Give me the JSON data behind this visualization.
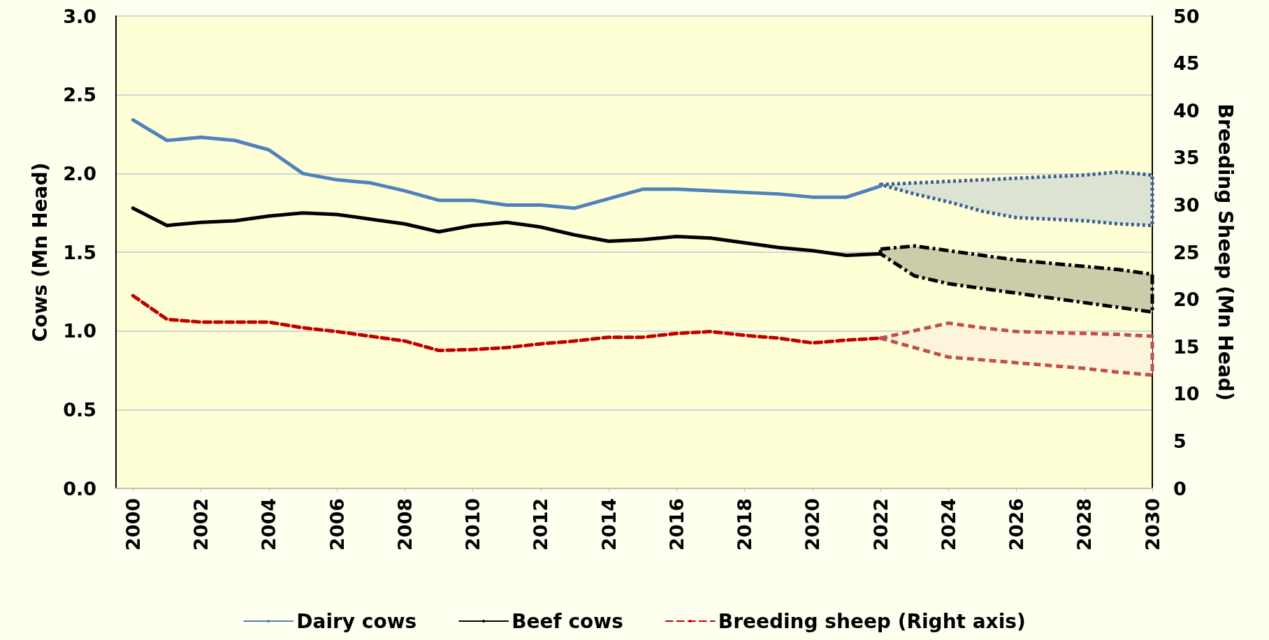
{
  "chart_data": {
    "type": "line",
    "ylabel": "Cows (Mn Head)",
    "y2label": "Breeding Sheep (Mn Head)",
    "x": [
      2000,
      2001,
      2002,
      2003,
      2004,
      2005,
      2006,
      2007,
      2008,
      2009,
      2010,
      2011,
      2012,
      2013,
      2014,
      2015,
      2016,
      2017,
      2018,
      2019,
      2020,
      2021,
      2022,
      2023,
      2024,
      2025,
      2026,
      2027,
      2028,
      2029,
      2030
    ],
    "xlim": [
      1999.5,
      2030
    ],
    "xticks": [
      2000,
      2002,
      2004,
      2006,
      2008,
      2010,
      2012,
      2014,
      2016,
      2018,
      2020,
      2022,
      2024,
      2026,
      2028,
      2030
    ],
    "ylim": [
      0,
      3
    ],
    "yticks": [
      {
        "value": 0,
        "label": "0.0"
      },
      0.5,
      {
        "value": 1,
        "label": "1.0"
      },
      1.5,
      {
        "value": 2,
        "label": "2.0"
      },
      2.5,
      {
        "value": 3,
        "label": "3.0"
      }
    ],
    "y2lim": [
      0,
      50
    ],
    "y2ticks": [
      0,
      5,
      10,
      15,
      20,
      25,
      30,
      35,
      40,
      45,
      50
    ],
    "grid": "y",
    "legend": "bottom",
    "marker": "none",
    "series": [
      {
        "name": "Dairy cows",
        "color": "#4f81bd",
        "line_style": "solid",
        "values": [
          2.34,
          2.21,
          2.23,
          2.21,
          2.15,
          2.0,
          1.96,
          1.94,
          1.89,
          1.83,
          1.83,
          1.8,
          1.8,
          1.78,
          1.84,
          1.9,
          1.9,
          1.89,
          1.88,
          1.87,
          1.85,
          1.85,
          1.92,
          null,
          null,
          null,
          null,
          null,
          null,
          null,
          null
        ],
        "upper": [
          null,
          null,
          null,
          null,
          null,
          null,
          null,
          null,
          null,
          null,
          null,
          null,
          null,
          null,
          null,
          null,
          null,
          null,
          null,
          null,
          null,
          null,
          1.93,
          1.94,
          1.95,
          1.96,
          1.97,
          1.98,
          1.99,
          2.01,
          1.99
        ],
        "lower": [
          null,
          null,
          null,
          null,
          null,
          null,
          null,
          null,
          null,
          null,
          null,
          null,
          null,
          null,
          null,
          null,
          null,
          null,
          null,
          null,
          null,
          null,
          1.93,
          1.87,
          1.82,
          1.76,
          1.72,
          1.71,
          1.7,
          1.68,
          1.67
        ]
      },
      {
        "name": "Beef cows",
        "color": "#000000",
        "line_style": "solid",
        "values": [
          1.78,
          1.67,
          1.69,
          1.7,
          1.73,
          1.75,
          1.74,
          1.71,
          1.68,
          1.63,
          1.67,
          1.69,
          1.66,
          1.61,
          1.57,
          1.58,
          1.6,
          1.59,
          1.56,
          1.53,
          1.51,
          1.48,
          1.49,
          null,
          null,
          null,
          null,
          null,
          null,
          null,
          null
        ],
        "upper": [
          null,
          null,
          null,
          null,
          null,
          null,
          null,
          null,
          null,
          null,
          null,
          null,
          null,
          null,
          null,
          null,
          null,
          null,
          null,
          null,
          null,
          null,
          1.52,
          1.54,
          1.51,
          1.48,
          1.45,
          1.43,
          1.41,
          1.39,
          1.36
        ],
        "lower": [
          null,
          null,
          null,
          null,
          null,
          null,
          null,
          null,
          null,
          null,
          null,
          null,
          null,
          null,
          null,
          null,
          null,
          null,
          null,
          null,
          null,
          null,
          1.49,
          1.35,
          1.3,
          1.27,
          1.24,
          1.21,
          1.18,
          1.15,
          1.12
        ]
      },
      {
        "name": "Breeding sheep (Right axis)",
        "color": "#c00000",
        "axis": "y2",
        "line_style": "dashed",
        "values": [
          20.4,
          17.9,
          17.6,
          17.6,
          17.6,
          17.0,
          16.6,
          16.1,
          15.6,
          14.6,
          14.7,
          14.9,
          15.3,
          15.6,
          16.0,
          16.0,
          16.4,
          16.6,
          16.2,
          15.9,
          15.4,
          15.7,
          15.9,
          null,
          null,
          null,
          null,
          null,
          null,
          null,
          null
        ],
        "upper": [
          null,
          null,
          null,
          null,
          null,
          null,
          null,
          null,
          null,
          null,
          null,
          null,
          null,
          null,
          null,
          null,
          null,
          null,
          null,
          null,
          null,
          null,
          15.9,
          16.7,
          17.5,
          17.0,
          16.6,
          16.5,
          16.4,
          16.3,
          16.1
        ],
        "lower": [
          null,
          null,
          null,
          null,
          null,
          null,
          null,
          null,
          null,
          null,
          null,
          null,
          null,
          null,
          null,
          null,
          null,
          null,
          null,
          null,
          null,
          null,
          15.9,
          14.9,
          13.9,
          13.6,
          13.3,
          13.0,
          12.7,
          12.3,
          12.0
        ]
      }
    ]
  }
}
